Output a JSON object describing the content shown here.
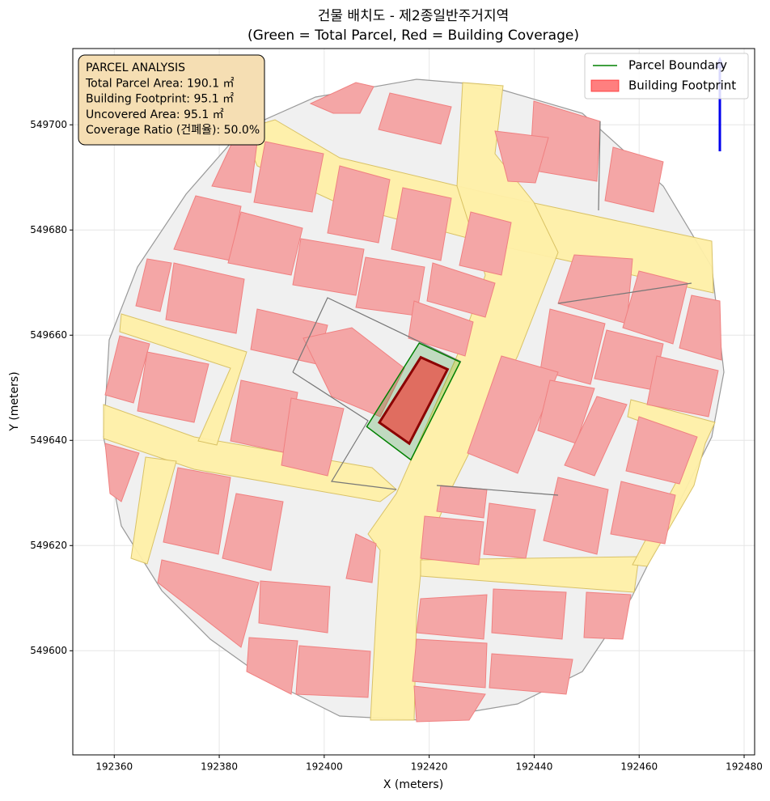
{
  "chart_data": {
    "type": "polygon",
    "title": "건물 배치도 - 제2종일반주거지역",
    "subtitle": "(Green = Total Parcel, Red = Building Coverage)",
    "xlabel": "X (meters)",
    "ylabel": "Y (meters)",
    "xlim": [
      192352.1,
      192482.0
    ],
    "ylim": [
      549580.2,
      549714.5
    ],
    "xticks": [
      192360,
      192380,
      192400,
      192420,
      192440,
      192460,
      192480
    ],
    "yticks": [
      549600,
      549620,
      549640,
      549660,
      549680,
      549700
    ],
    "grid": true,
    "legend": "upper right",
    "series": [
      {
        "name": "Parcel Boundary",
        "color": "green",
        "x": [
          192418.1,
          192425.9,
          192416.5,
          192408.1
        ],
        "y": [
          549658.5,
          549654.9,
          549636.3,
          549642.6
        ]
      },
      {
        "name": "Building Footprint",
        "color": "red",
        "x": [
          192418.4,
          192423.5,
          192416.2,
          192410.5
        ],
        "y": [
          549655.8,
          549653.5,
          549639.4,
          549643.4
        ]
      }
    ],
    "annotation": [
      "PARCEL ANALYSIS",
      "Total Parcel Area: 190.1 ㎡",
      "Building Footprint: 95.1 ㎡",
      "Uncovered Area: 95.1 ㎡",
      "Coverage Ratio (건폐율): 50.0%"
    ]
  }
}
